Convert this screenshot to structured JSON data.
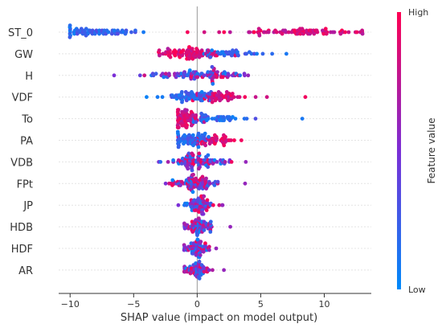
{
  "chart_data": {
    "type": "scatter",
    "subtype": "shap-beeswarm",
    "title": "",
    "xlabel": "SHAP value (impact on model output)",
    "ylabel": "",
    "xlim": [
      -10.9,
      13.7
    ],
    "xticks": [
      "−10",
      "−5",
      "0",
      "5",
      "10"
    ],
    "xtick_values": [
      -10,
      -5,
      0,
      5,
      10
    ],
    "grid": false,
    "features": [
      {
        "name": "ST_0",
        "min": -10,
        "max": 13,
        "high_side": "positive",
        "clusters": [
          {
            "c": -8,
            "s": 1.6,
            "n": 70,
            "hue": "low"
          },
          {
            "c": 8,
            "s": 2.5,
            "n": 85,
            "hue": "high"
          }
        ]
      },
      {
        "name": "GW",
        "min": -3,
        "max": 7,
        "high_side": "negative",
        "clusters": [
          {
            "c": -0.5,
            "s": 1.2,
            "n": 90,
            "hue": "high"
          },
          {
            "c": 3,
            "s": 1.4,
            "n": 40,
            "hue": "low"
          }
        ]
      },
      {
        "name": "H",
        "min": -6.5,
        "max": 4,
        "high_side": "mixed",
        "clusters": [
          {
            "c": -1,
            "s": 1.8,
            "n": 70,
            "hue": "mixed"
          },
          {
            "c": 1.5,
            "s": 1.2,
            "n": 40,
            "hue": "mixed"
          }
        ]
      },
      {
        "name": "VDF",
        "min": -4,
        "max": 8.5,
        "high_side": "positive",
        "clusters": [
          {
            "c": -0.5,
            "s": 0.9,
            "n": 70,
            "hue": "low"
          },
          {
            "c": 2,
            "s": 1.2,
            "n": 55,
            "hue": "high"
          }
        ]
      },
      {
        "name": "To",
        "min": -1.5,
        "max": 8.3,
        "high_side": "negative",
        "clusters": [
          {
            "c": -0.8,
            "s": 0.6,
            "n": 75,
            "hue": "high"
          },
          {
            "c": 1.5,
            "s": 1.1,
            "n": 45,
            "hue": "low"
          }
        ]
      },
      {
        "name": "PA",
        "min": -1.5,
        "max": 3.5,
        "high_side": "positive",
        "clusters": [
          {
            "c": -0.5,
            "s": 0.7,
            "n": 70,
            "hue": "low"
          },
          {
            "c": 1,
            "s": 0.9,
            "n": 45,
            "hue": "high"
          }
        ]
      },
      {
        "name": "VDB",
        "min": -3,
        "max": 3.8,
        "high_side": "mixed",
        "clusters": [
          {
            "c": 0,
            "s": 1,
            "n": 100,
            "hue": "mixed"
          }
        ]
      },
      {
        "name": "FPt",
        "min": -2.5,
        "max": 3.8,
        "high_side": "mixed",
        "clusters": [
          {
            "c": 0,
            "s": 0.9,
            "n": 95,
            "hue": "mixed"
          }
        ]
      },
      {
        "name": "JP",
        "min": -1.5,
        "max": 2,
        "high_side": "mixed",
        "clusters": [
          {
            "c": 0.2,
            "s": 0.6,
            "n": 80,
            "hue": "mixed"
          }
        ]
      },
      {
        "name": "HDB",
        "min": -1,
        "max": 2.6,
        "high_side": "mixed",
        "clusters": [
          {
            "c": 0,
            "s": 0.6,
            "n": 75,
            "hue": "mixed"
          }
        ]
      },
      {
        "name": "HDF",
        "min": -1,
        "max": 1.5,
        "high_side": "mixed",
        "clusters": [
          {
            "c": 0,
            "s": 0.5,
            "n": 70,
            "hue": "mixed"
          }
        ]
      },
      {
        "name": "AR",
        "min": -1,
        "max": 2.1,
        "high_side": "mixed",
        "clusters": [
          {
            "c": 0,
            "s": 0.5,
            "n": 65,
            "hue": "mixed"
          }
        ]
      }
    ],
    "colorbar": {
      "title": "Feature value",
      "high_label": "High",
      "low_label": "Low",
      "colors": [
        "#008AFA",
        "#7B2FD6",
        "#FF0052"
      ]
    }
  }
}
